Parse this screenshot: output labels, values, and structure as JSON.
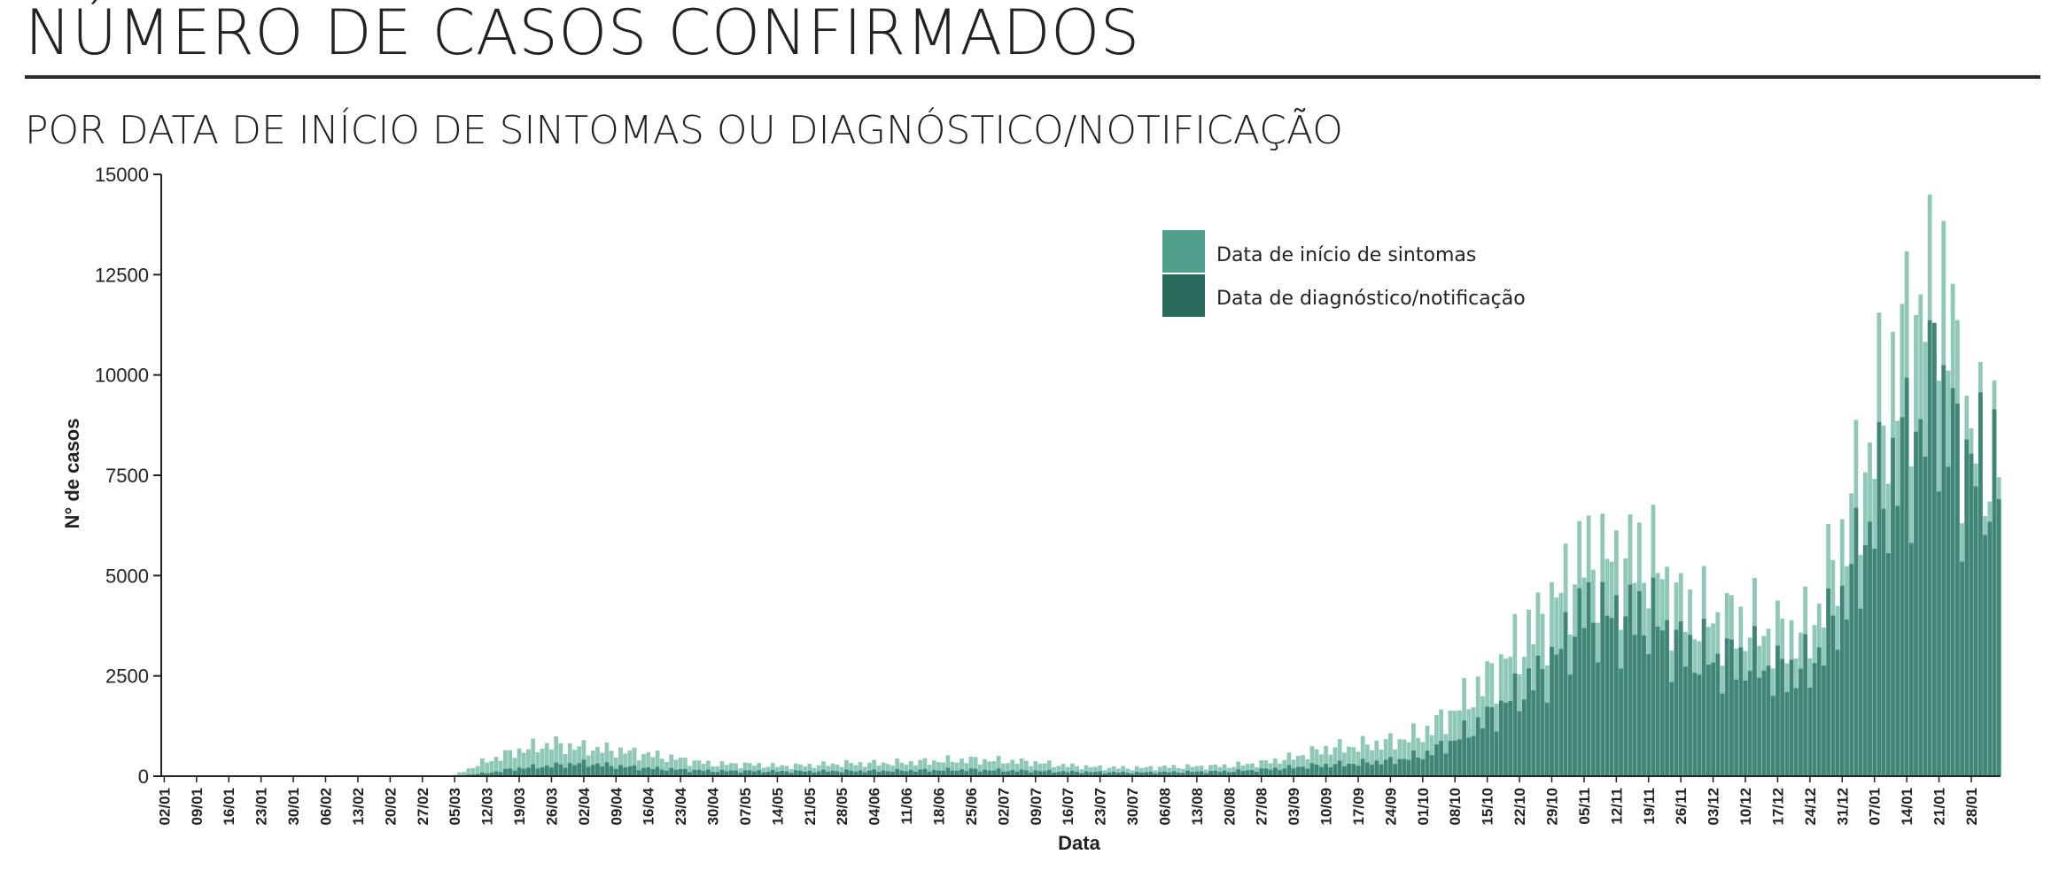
{
  "header": {
    "title": "NÚMERO DE CASOS CONFIRMADOS",
    "subtitle": "POR DATA DE INÍCIO DE SINTOMAS OU DIAGNÓSTICO/NOTIFICAÇÃO"
  },
  "colors": {
    "symptom_onset": "#4f9f8c",
    "symptom_onset_bar": "#8fc8b9",
    "diagnosis": "#2a6b5e",
    "diagnosis_bar": "#3f8676",
    "axis": "#222222"
  },
  "chart_data": {
    "type": "bar",
    "xlabel": "Data",
    "ylabel": "N° de casos",
    "ylim": [
      0,
      15000
    ],
    "yticks": [
      0,
      2500,
      5000,
      7500,
      10000,
      12500,
      15000
    ],
    "x_start": "02/01",
    "xtick_labels": [
      "02/01",
      "09/01",
      "16/01",
      "23/01",
      "30/01",
      "06/02",
      "13/02",
      "20/02",
      "27/02",
      "05/03",
      "12/03",
      "19/03",
      "26/03",
      "02/04",
      "09/04",
      "16/04",
      "23/04",
      "30/04",
      "07/05",
      "14/05",
      "21/05",
      "28/05",
      "04/06",
      "11/06",
      "18/06",
      "25/06",
      "02/07",
      "09/07",
      "16/07",
      "23/07",
      "30/07",
      "06/08",
      "13/08",
      "20/08",
      "27/08",
      "03/09",
      "10/09",
      "17/09",
      "24/09",
      "01/10",
      "08/10",
      "15/10",
      "22/10",
      "29/10",
      "05/11",
      "12/11",
      "19/11",
      "26/11",
      "03/12",
      "10/12",
      "17/12",
      "24/12",
      "31/12",
      "07/01",
      "14/01",
      "21/01",
      "28/01"
    ],
    "legend_position": "top-right",
    "grid": false,
    "series": [
      {
        "name": "Data de início de sintomas",
        "weekly_values": [
          0,
          0,
          0,
          0,
          0,
          0,
          0,
          0,
          0,
          30,
          380,
          640,
          800,
          700,
          640,
          540,
          420,
          300,
          300,
          250,
          270,
          310,
          320,
          340,
          380,
          410,
          380,
          340,
          260,
          220,
          200,
          230,
          240,
          260,
          330,
          470,
          680,
          750,
          850,
          1050,
          1650,
          2400,
          3300,
          4200,
          5500,
          5300,
          5500,
          4200,
          3900,
          3800,
          3500,
          3600,
          5800,
          8500,
          10800,
          12500,
          8200
        ],
        "peak_value": 14500,
        "peak_date": "19/01"
      },
      {
        "name": "Data de diagnóstico/notificação",
        "weekly_values": [
          0,
          0,
          0,
          0,
          0,
          0,
          0,
          0,
          0,
          0,
          80,
          200,
          260,
          320,
          250,
          200,
          160,
          130,
          130,
          120,
          120,
          130,
          130,
          140,
          150,
          160,
          140,
          130,
          110,
          100,
          90,
          100,
          110,
          120,
          160,
          220,
          280,
          320,
          380,
          520,
          900,
          1450,
          2100,
          2800,
          4100,
          3900,
          4000,
          3200,
          2900,
          2900,
          2600,
          2700,
          4300,
          6500,
          8200,
          9000,
          7600
        ],
        "peak_value": 11300,
        "peak_date": "20/01"
      }
    ]
  }
}
